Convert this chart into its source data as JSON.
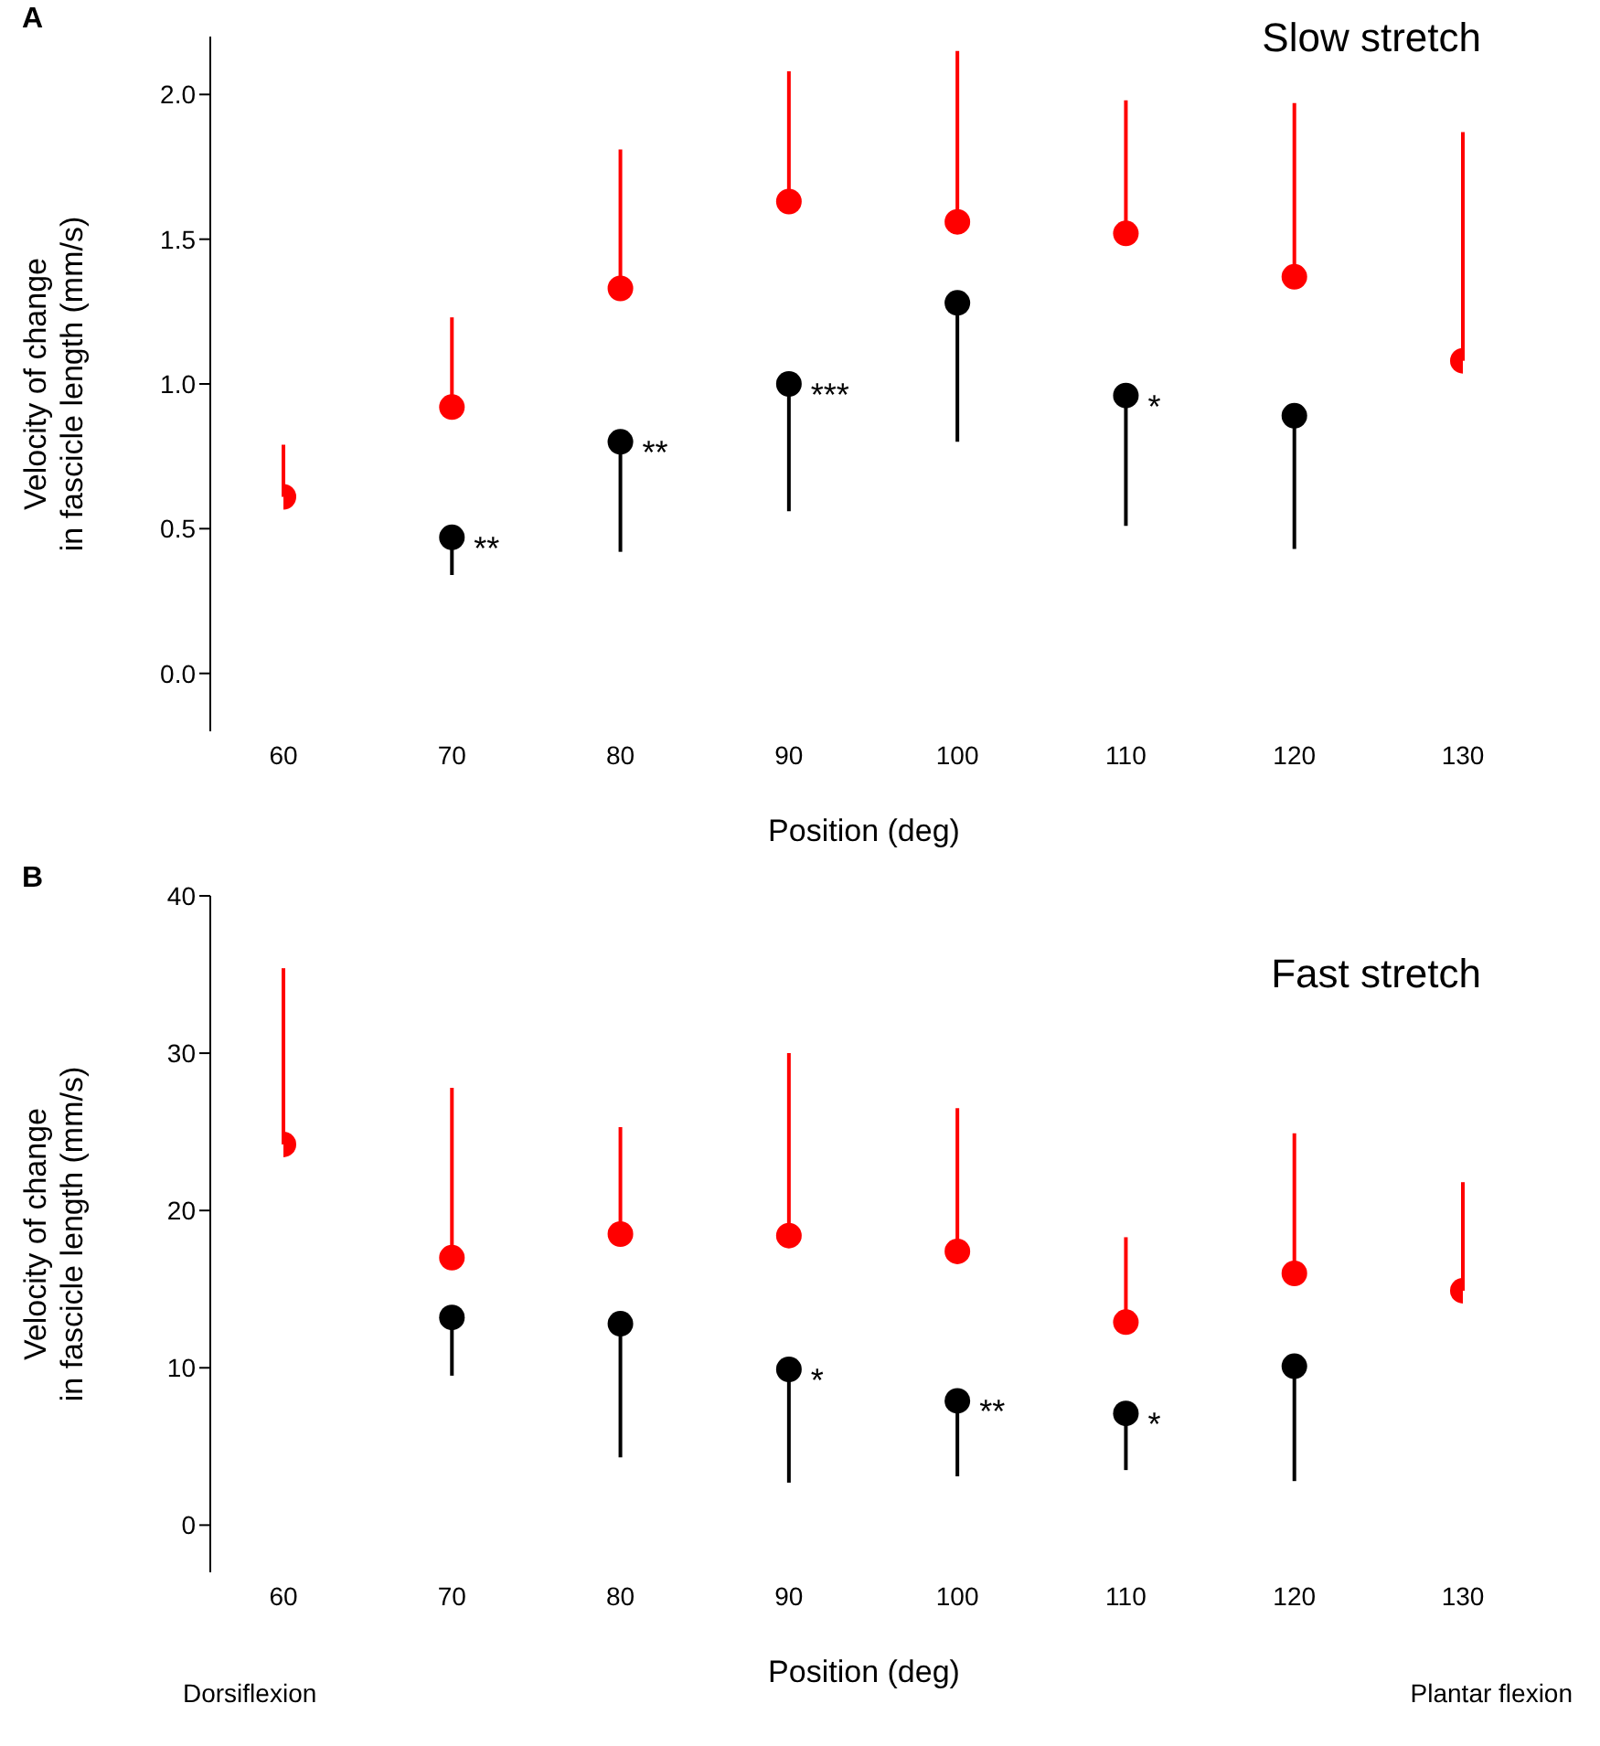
{
  "chart_data": [
    {
      "type": "scatter",
      "title": "A",
      "subtitle": "Slow stretch",
      "xlabel": "Position (deg)",
      "ylabel": "Velocity of change\nin fascicle length (mm/s)",
      "x": [
        60,
        70,
        80,
        90,
        100,
        110,
        120,
        130
      ],
      "series": [
        {
          "color": "#ff0000",
          "values": [
            0.61,
            0.92,
            1.33,
            1.63,
            1.56,
            1.52,
            1.37,
            1.08
          ],
          "errors": [
            [
              0.61,
              0.79
            ],
            [
              0.92,
              1.23
            ],
            [
              1.33,
              1.81
            ],
            [
              1.63,
              2.08
            ],
            [
              1.56,
              2.15
            ],
            [
              1.52,
              1.98
            ],
            [
              1.37,
              1.97
            ],
            [
              1.08,
              1.87
            ]
          ]
        },
        {
          "color": "#000000",
          "values": [
            null,
            0.47,
            0.8,
            1.0,
            1.28,
            0.96,
            0.89,
            null
          ],
          "errors": [
            null,
            [
              0.34,
              0.47
            ],
            [
              0.42,
              0.8
            ],
            [
              0.56,
              1.0
            ],
            [
              0.8,
              1.28
            ],
            [
              0.51,
              0.96
            ],
            [
              0.43,
              0.89
            ],
            null
          ]
        }
      ],
      "annotations": [
        {
          "text": "**",
          "x": 70,
          "y": 0.47
        },
        {
          "text": "**",
          "x": 80,
          "y": 0.8
        },
        {
          "text": "***",
          "x": 90,
          "y": 1.0
        },
        {
          "text": "*",
          "x": 110,
          "y": 0.96
        }
      ],
      "xlim": [
        60,
        130
      ],
      "xticks": [
        60,
        70,
        80,
        90,
        100,
        110,
        120,
        130
      ],
      "ylim": [
        -0.2,
        2.2
      ],
      "yticks": [
        {
          "value": 0,
          "label": "0.0"
        },
        {
          "value": 0.5,
          "label": "0.5"
        },
        {
          "value": 1,
          "label": "1.0"
        },
        {
          "value": 1.5,
          "label": "1.5"
        },
        {
          "value": 2,
          "label": "2.0"
        }
      ],
      "grid": false,
      "legend": false,
      "marker": "circle"
    },
    {
      "type": "scatter",
      "title": "B",
      "subtitle": "Fast stretch",
      "xlabel": "Position (deg)",
      "ylabel": "Velocity of change\nin fascicle length (mm/s)",
      "x": [
        60,
        70,
        80,
        90,
        100,
        110,
        120,
        130
      ],
      "series": [
        {
          "color": "#ff0000",
          "values": [
            24.2,
            17.0,
            18.5,
            18.4,
            17.4,
            12.9,
            16.0,
            14.9
          ],
          "errors": [
            [
              24.2,
              35.4
            ],
            [
              17.0,
              27.8
            ],
            [
              18.5,
              25.3
            ],
            [
              18.4,
              30.0
            ],
            [
              17.4,
              26.5
            ],
            [
              12.9,
              18.3
            ],
            [
              16.0,
              24.9
            ],
            [
              14.9,
              21.8
            ]
          ]
        },
        {
          "color": "#000000",
          "values": [
            null,
            13.2,
            12.8,
            9.9,
            7.9,
            7.1,
            10.1,
            null
          ],
          "errors": [
            null,
            [
              9.5,
              13.2
            ],
            [
              4.3,
              12.8
            ],
            [
              2.7,
              9.9
            ],
            [
              3.1,
              7.9
            ],
            [
              3.5,
              7.1
            ],
            [
              2.8,
              10.1
            ],
            null
          ]
        }
      ],
      "annotations": [
        {
          "text": "*",
          "x": 90,
          "y": 9.9
        },
        {
          "text": "**",
          "x": 100,
          "y": 7.9
        },
        {
          "text": "*",
          "x": 110,
          "y": 7.1
        },
        "Dorsiflexion",
        "Plantar flexion"
      ],
      "xlim": [
        60,
        130
      ],
      "xticks": [
        60,
        70,
        80,
        90,
        100,
        110,
        120,
        130
      ],
      "ylim": [
        -3,
        40
      ],
      "yticks": [
        0,
        10,
        20,
        30,
        40
      ],
      "grid": false,
      "legend": false,
      "marker": "circle"
    }
  ]
}
